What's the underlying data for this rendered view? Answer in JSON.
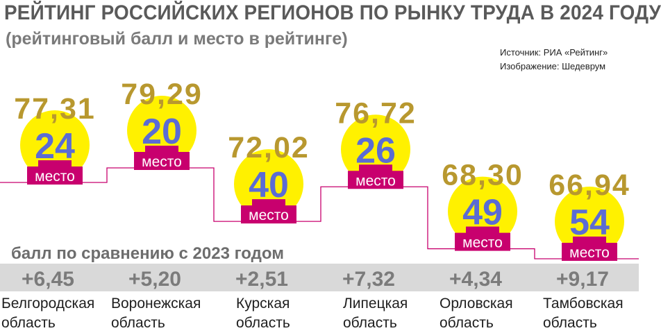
{
  "header": {
    "title": "РЕЙТИНГ РОССИЙСКИХ РЕГИОНОВ ПО РЫНКУ ТРУДА В 2024 ГОДУ",
    "subtitle": "(рейтинговый балл и место в рейтинге)",
    "source_line1": "Источник: РИА «Рейтинг»",
    "source_line2": "Изображение: Шедеврум"
  },
  "comparison_label": "балл по сравнению с 2023 годом",
  "colors": {
    "score": "#b8982f",
    "rank": "#5b6cd4",
    "circle": "#fff100",
    "badge": "#c8006e",
    "step_line": "#c8006e",
    "strip": "#d9d9d9",
    "delta": "#7b7b7b"
  },
  "chart_data": {
    "type": "bar",
    "title": "РЕЙТИНГ РОССИЙСКИХ РЕГИОНОВ ПО РЫНКУ ТРУДА В 2024 ГОДУ",
    "subtitle": "(рейтинговый балл и место в рейтинге)",
    "rank_suffix": "место",
    "categories": [
      [
        "Белгородская",
        "область"
      ],
      [
        "Воронежская",
        "область"
      ],
      [
        "Курская",
        "область"
      ],
      [
        "Липецкая",
        "область"
      ],
      [
        "Орловская",
        "область"
      ],
      [
        "Тамбовская",
        "область"
      ]
    ],
    "scores": [
      "77,31",
      "79,29",
      "72,02",
      "76,72",
      "68,30",
      "66,94"
    ],
    "score_values": [
      77.31,
      79.29,
      72.02,
      76.72,
      68.3,
      66.94
    ],
    "ranks": [
      "24",
      "20",
      "40",
      "26",
      "49",
      "54"
    ],
    "deltas": [
      "+6,45",
      "+5,20",
      "+2,51",
      "+7,32",
      "+4,34",
      "+9,17"
    ]
  }
}
